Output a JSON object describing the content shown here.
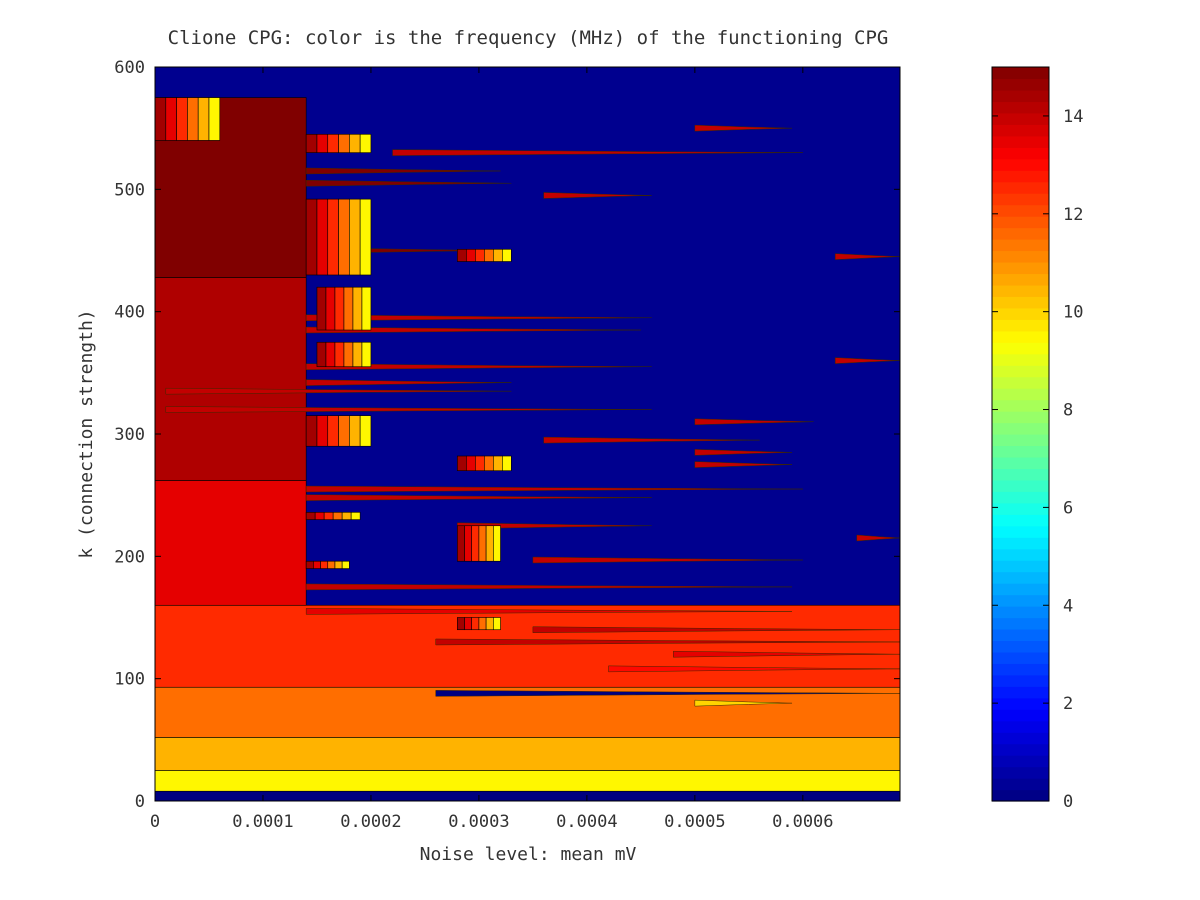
{
  "chart_data": {
    "type": "heatmap",
    "title": "Clione CPG: color is the frequency (MHz) of the functioning CPG",
    "xlabel": "Noise level: mean mV",
    "ylabel": "k (connection strength)",
    "xlim": [
      0,
      0.00069
    ],
    "ylim": [
      0,
      600
    ],
    "x_ticks": [
      "0",
      "0.0001",
      "0.0002",
      "0.0003",
      "0.0004",
      "0.0005",
      "0.0006"
    ],
    "x_tick_values": [
      0,
      0.0001,
      0.0002,
      0.0003,
      0.0004,
      0.0005,
      0.0006
    ],
    "y_ticks": [
      "0",
      "100",
      "200",
      "300",
      "400",
      "500",
      "600"
    ],
    "y_tick_values": [
      0,
      100,
      200,
      300,
      400,
      500,
      600
    ],
    "colorbar": {
      "range": [
        0,
        15
      ],
      "ticks": [
        "0",
        "2",
        "4",
        "6",
        "8",
        "10",
        "12",
        "14"
      ],
      "tick_values": [
        0,
        2,
        4,
        6,
        8,
        10,
        12,
        14
      ],
      "colormap": "jet"
    },
    "background_value": 0,
    "regions": [
      {
        "k_min": 0,
        "k_max": 8,
        "x_max": 0.00069,
        "value": 0
      },
      {
        "k_min": 8,
        "k_max": 25,
        "x_max": 0.00069,
        "value": 9.5
      },
      {
        "k_min": 25,
        "k_max": 52,
        "x_max": 0.00069,
        "value": 10.5
      },
      {
        "k_min": 52,
        "k_max": 93,
        "x_max": 0.00069,
        "value": 11.5
      },
      {
        "k_min": 93,
        "k_max": 160,
        "x_max": 0.00069,
        "value": 12.5
      },
      {
        "k_min": 160,
        "k_max": 262,
        "x_max": 0.00014,
        "value": 13.5
      },
      {
        "k_min": 262,
        "k_max": 428,
        "x_max": 0.00014,
        "value": 14.3
      },
      {
        "k_min": 428,
        "k_max": 575,
        "x_max": 0.00014,
        "value": 15
      }
    ],
    "spikes": [
      {
        "k": 88,
        "x_start": 0.00026,
        "x_end": 0.00069,
        "value": 0
      },
      {
        "k": 80,
        "x_start": 0.0005,
        "x_end": 0.00059,
        "value": 10
      },
      {
        "k": 108,
        "x_start": 0.00042,
        "x_end": 0.00069,
        "value": 13
      },
      {
        "k": 120,
        "x_start": 0.00048,
        "x_end": 0.00069,
        "value": 13.5
      },
      {
        "k": 130,
        "x_start": 0.00026,
        "x_end": 0.00069,
        "value": 14
      },
      {
        "k": 140,
        "x_start": 0.00035,
        "x_end": 0.00069,
        "value": 14
      },
      {
        "k": 155,
        "x_start": 0.00014,
        "x_end": 0.00059,
        "value": 13.5
      },
      {
        "k": 175,
        "x_start": 0.00014,
        "x_end": 0.00059,
        "value": 14
      },
      {
        "k": 197,
        "x_start": 0.00035,
        "x_end": 0.0006,
        "value": 14
      },
      {
        "k": 215,
        "x_start": 0.00065,
        "x_end": 0.00069,
        "value": 14
      },
      {
        "k": 225,
        "x_start": 0.00028,
        "x_end": 0.00046,
        "value": 14
      },
      {
        "k": 248,
        "x_start": 0.00014,
        "x_end": 0.00046,
        "value": 14
      },
      {
        "k": 255,
        "x_start": 0.00014,
        "x_end": 0.0006,
        "value": 14
      },
      {
        "k": 275,
        "x_start": 0.0005,
        "x_end": 0.00059,
        "value": 14
      },
      {
        "k": 285,
        "x_start": 0.0005,
        "x_end": 0.00059,
        "value": 14
      },
      {
        "k": 295,
        "x_start": 0.00036,
        "x_end": 0.00056,
        "value": 14
      },
      {
        "k": 310,
        "x_start": 0.0005,
        "x_end": 0.00061,
        "value": 14
      },
      {
        "k": 320,
        "x_start": 1e-05,
        "x_end": 0.00046,
        "value": 14
      },
      {
        "k": 335,
        "x_start": 1e-05,
        "x_end": 0.00033,
        "value": 14
      },
      {
        "k": 342,
        "x_start": 0.00014,
        "x_end": 0.00033,
        "value": 14
      },
      {
        "k": 355,
        "x_start": 0.00014,
        "x_end": 0.00046,
        "value": 14
      },
      {
        "k": 360,
        "x_start": 0.00063,
        "x_end": 0.00069,
        "value": 14
      },
      {
        "k": 385,
        "x_start": 0.00014,
        "x_end": 0.00045,
        "value": 14
      },
      {
        "k": 395,
        "x_start": 0.00014,
        "x_end": 0.00046,
        "value": 14
      },
      {
        "k": 445,
        "x_start": 0.00063,
        "x_end": 0.00069,
        "value": 14
      },
      {
        "k": 450,
        "x_start": 0.00014,
        "x_end": 0.00031,
        "value": 15
      },
      {
        "k": 495,
        "x_start": 0.00036,
        "x_end": 0.00046,
        "value": 14
      },
      {
        "k": 505,
        "x_start": 0.00014,
        "x_end": 0.00033,
        "value": 15
      },
      {
        "k": 515,
        "x_start": 0.00014,
        "x_end": 0.00032,
        "value": 15
      },
      {
        "k": 530,
        "x_start": 0.00022,
        "x_end": 0.0006,
        "value": 14
      },
      {
        "k": 550,
        "x_start": 0.0005,
        "x_end": 0.00059,
        "value": 14
      }
    ],
    "fringes": [
      {
        "k_min": 540,
        "k_max": 575,
        "x_start": 0.0,
        "x_end": 6e-05
      },
      {
        "k_min": 530,
        "k_max": 545,
        "x_start": 0.00014,
        "x_end": 0.0002
      },
      {
        "k_min": 430,
        "k_max": 492,
        "x_start": 0.00014,
        "x_end": 0.0002
      },
      {
        "k_min": 441,
        "k_max": 451,
        "x_start": 0.00028,
        "x_end": 0.00033
      },
      {
        "k_min": 385,
        "k_max": 420,
        "x_start": 0.00015,
        "x_end": 0.0002
      },
      {
        "k_min": 355,
        "k_max": 375,
        "x_start": 0.00015,
        "x_end": 0.0002
      },
      {
        "k_min": 290,
        "k_max": 315,
        "x_start": 0.00014,
        "x_end": 0.0002
      },
      {
        "k_min": 270,
        "k_max": 282,
        "x_start": 0.00028,
        "x_end": 0.00033
      },
      {
        "k_min": 230,
        "k_max": 236,
        "x_start": 0.00014,
        "x_end": 0.00019
      },
      {
        "k_min": 196,
        "k_max": 225,
        "x_start": 0.00028,
        "x_end": 0.00032
      },
      {
        "k_min": 190,
        "k_max": 196,
        "x_start": 0.00014,
        "x_end": 0.00018
      },
      {
        "k_min": 140,
        "k_max": 150,
        "x_start": 0.00028,
        "x_end": 0.00032
      }
    ]
  }
}
